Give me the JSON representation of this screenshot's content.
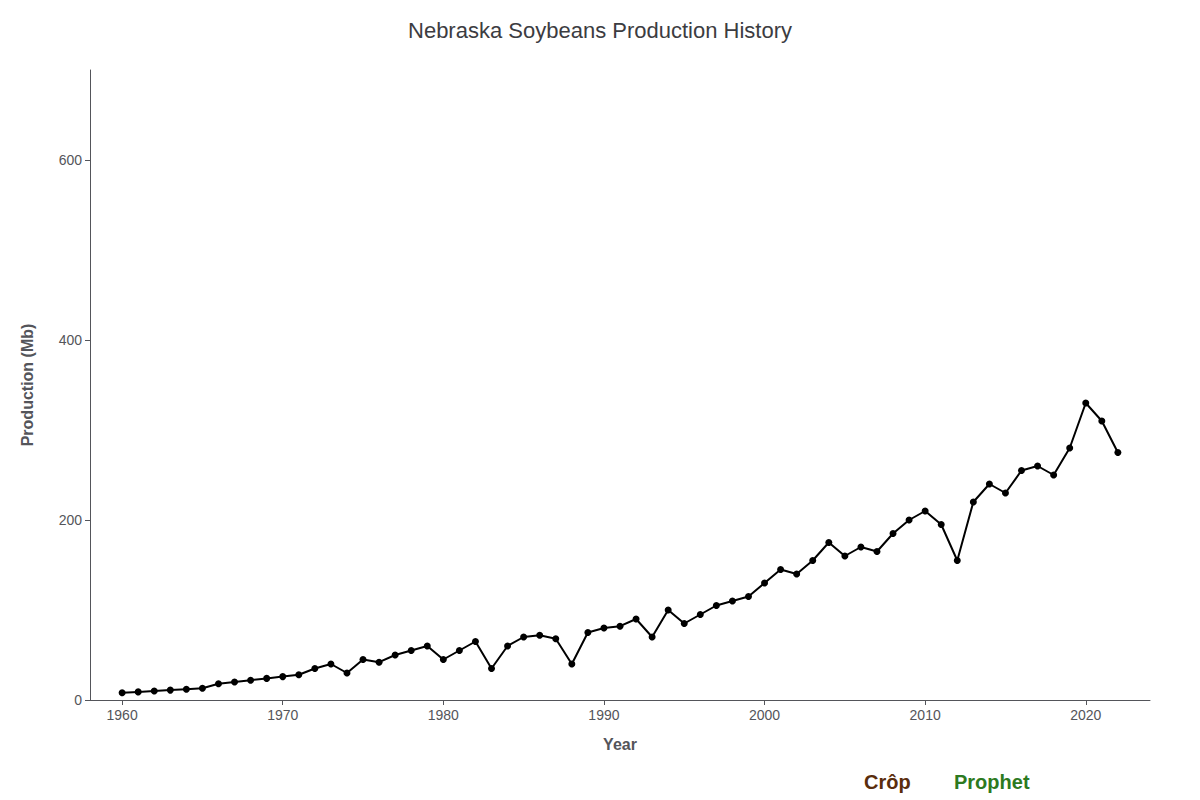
{
  "chart_data": {
    "type": "line",
    "title": "Nebraska Soybeans Production History",
    "xlabel": "Year",
    "ylabel": "Production (Mb)",
    "x": [
      1960,
      1961,
      1962,
      1963,
      1964,
      1965,
      1966,
      1967,
      1968,
      1969,
      1970,
      1971,
      1972,
      1973,
      1974,
      1975,
      1976,
      1977,
      1978,
      1979,
      1980,
      1981,
      1982,
      1983,
      1984,
      1985,
      1986,
      1987,
      1988,
      1989,
      1990,
      1991,
      1992,
      1993,
      1994,
      1995,
      1996,
      1997,
      1998,
      1999,
      2000,
      2001,
      2002,
      2003,
      2004,
      2005,
      2006,
      2007,
      2008,
      2009,
      2010,
      2011,
      2012,
      2013,
      2014,
      2015,
      2016,
      2017,
      2018,
      2019,
      2020,
      2021,
      2022
    ],
    "values": [
      8,
      9,
      10,
      11,
      12,
      13,
      18,
      20,
      22,
      24,
      26,
      28,
      35,
      40,
      30,
      45,
      42,
      50,
      55,
      60,
      45,
      55,
      65,
      35,
      60,
      70,
      72,
      68,
      40,
      75,
      80,
      82,
      90,
      70,
      100,
      85,
      95,
      105,
      110,
      115,
      130,
      145,
      140,
      155,
      175,
      160,
      170,
      165,
      185,
      200,
      210,
      195,
      155,
      220,
      240,
      230,
      255,
      260,
      250,
      280,
      330,
      310,
      275
    ],
    "xlim": [
      1958,
      2024
    ],
    "xticks": [
      1960,
      1970,
      1980,
      1990,
      2000,
      2010,
      2020
    ],
    "ylim": [
      0,
      700
    ],
    "yticks": [
      0,
      200,
      400,
      600
    ],
    "grid": false,
    "marker": "circle",
    "color": "#000000",
    "annotations": [
      {
        "text": "Crôp",
        "color": "#5a2d0c"
      },
      {
        "text": "Prophet",
        "color": "#2d7a1f"
      }
    ]
  }
}
